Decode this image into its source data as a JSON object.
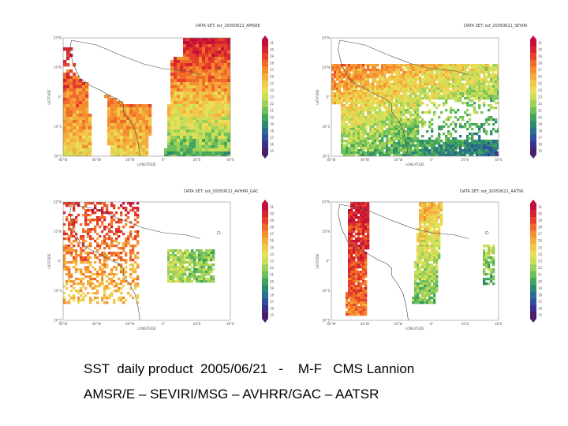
{
  "caption": {
    "line1": "SST  daily product  2005/06/21   -    M-F   CMS Lannion",
    "line2": "AMSR/E – SEVIRI/MSG – AVHRR/GAC – AATSR"
  },
  "panels": [
    {
      "id": "amsre",
      "title": "DATA SET: sst_20050621_AMSRE",
      "sensor": "AMSR/E",
      "lon_ticks": [
        "60°W",
        "40°W",
        "20°W",
        "0°",
        "20°E",
        "40°E"
      ],
      "lat_ticks": [
        "20°N",
        "10°N",
        "0°",
        "10°S",
        "20°S"
      ],
      "xlabel": "LONGITUDE",
      "ylabel": "LATITUDE",
      "colorbar": [
        "31",
        "30",
        "29",
        "28",
        "27",
        "26",
        "25",
        "24",
        "23",
        "22",
        "21",
        "20",
        "19",
        "18",
        "17",
        "16",
        "15"
      ]
    },
    {
      "id": "seviri",
      "title": "DATA SET: sst_20050621_SEVIRI",
      "sensor": "SEVIRI/MSG",
      "lon_ticks": [
        "60°W",
        "40°W",
        "20°W",
        "0°",
        "20°E",
        "40°E"
      ],
      "lat_ticks": [
        "20°N",
        "10°N",
        "0°",
        "10°S",
        "20°S"
      ],
      "xlabel": "LONGITUDE",
      "ylabel": "LATITUDE",
      "colorbar": [
        "31",
        "30",
        "29",
        "28",
        "27",
        "26",
        "25",
        "24",
        "23",
        "22",
        "21",
        "20",
        "19",
        "18",
        "17",
        "16",
        "15"
      ]
    },
    {
      "id": "avhrr",
      "title": "DATA SET: sst_20050621_AVHRR_GAC",
      "sensor": "AVHRR/GAC",
      "lon_ticks": [
        "60°W",
        "40°W",
        "20°W",
        "0°",
        "20°E",
        "40°E"
      ],
      "lat_ticks": [
        "20°N",
        "10°N",
        "0°",
        "10°S",
        "20°S"
      ],
      "xlabel": "LONGITUDE",
      "ylabel": "LATITUDE",
      "colorbar": [
        "31",
        "30",
        "29",
        "28",
        "27",
        "26",
        "25",
        "24",
        "23",
        "22",
        "21",
        "20",
        "19",
        "18",
        "17",
        "16",
        "15"
      ]
    },
    {
      "id": "aatsr",
      "title": "DATA SET: sst_20050621_AATSR",
      "sensor": "AATSR",
      "lon_ticks": [
        "60°W",
        "40°W",
        "20°W",
        "0°",
        "20°E",
        "40°E"
      ],
      "lat_ticks": [
        "20°N",
        "10°N",
        "0°",
        "10°S",
        "20°S"
      ],
      "xlabel": "LONGITUDE",
      "ylabel": "LATITUDE",
      "colorbar": [
        "31",
        "30",
        "29",
        "28",
        "27",
        "26",
        "25",
        "24",
        "23",
        "22",
        "21",
        "20",
        "19",
        "18",
        "17",
        "16",
        "15"
      ]
    }
  ],
  "colors": {
    "scale": [
      "#c2103a",
      "#d6242f",
      "#e5402a",
      "#ef6a2b",
      "#f48e2f",
      "#f4ad3c",
      "#f1c94a",
      "#e8de58",
      "#c9df5a",
      "#9fd05a",
      "#6fbf5a",
      "#43a55d",
      "#2c8a6e",
      "#2b6f8f",
      "#2f4f9e",
      "#3d2f8f",
      "#4a1f6b"
    ],
    "land": "#ffffff",
    "coast": "#444444"
  }
}
